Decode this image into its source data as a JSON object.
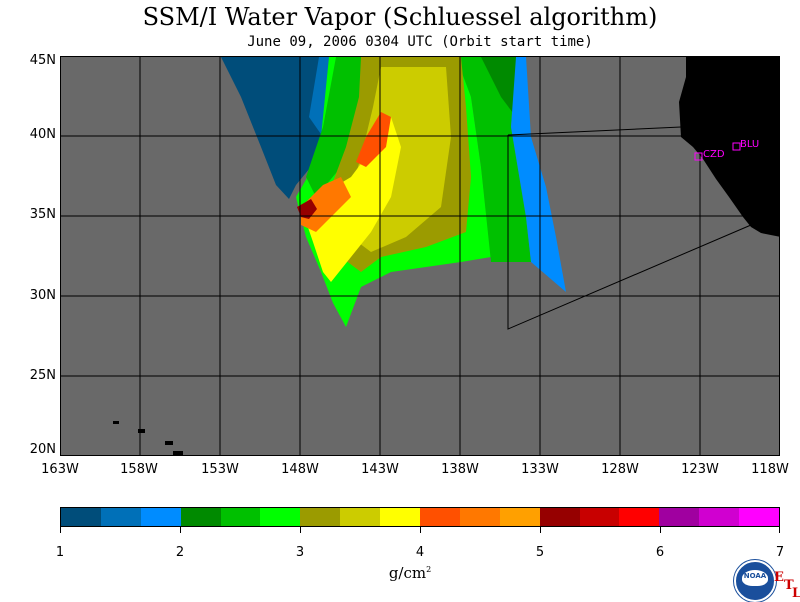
{
  "title": "SSM/I Water Vapor (Schluessel algorithm)",
  "subtitle": "June 09, 2006  0304 UTC  (Orbit start time)",
  "map": {
    "lat_labels": [
      "45N",
      "40N",
      "35N",
      "30N",
      "25N",
      "20N"
    ],
    "lon_labels": [
      "163W",
      "158W",
      "153W",
      "148W",
      "143W",
      "138W",
      "133W",
      "128W",
      "123W",
      "118W"
    ],
    "stations": [
      "CZD",
      "BLU"
    ],
    "background_color": "#696969",
    "land_color": "#000000",
    "station_color": "#ff00ff"
  },
  "colorbar": {
    "colors": [
      "#004d7a",
      "#0070b8",
      "#008cff",
      "#008a00",
      "#00c000",
      "#00ff00",
      "#9b9b00",
      "#cccc00",
      "#ffff00",
      "#ff5000",
      "#ff7800",
      "#ffa000",
      "#960000",
      "#c80000",
      "#ff0000",
      "#a000a0",
      "#d000d0",
      "#ff00ff"
    ],
    "tick_labels": [
      "1",
      "2",
      "3",
      "4",
      "5",
      "6",
      "7"
    ],
    "unit": "g/cm",
    "unit_sup": "2"
  },
  "logo": {
    "text": "NOAA",
    "corner_letters": [
      "E",
      "T",
      "L"
    ]
  }
}
